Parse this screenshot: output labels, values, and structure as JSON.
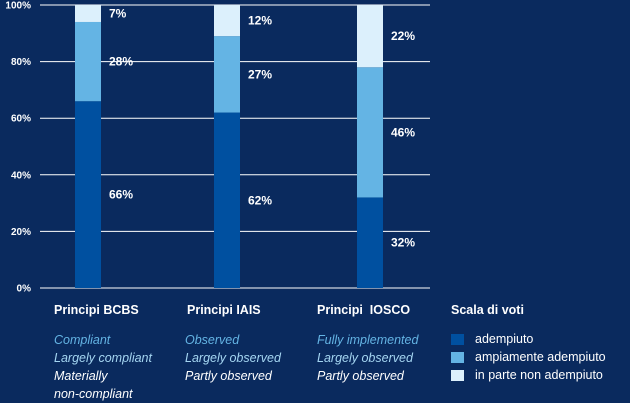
{
  "colors": {
    "background": "#0a2a5e",
    "adempiuto": "#0050a0",
    "ampiamente": "#64b4e4",
    "in_parte": "#dcf0fc",
    "grid": "#ffffff"
  },
  "chart_data": {
    "type": "bar",
    "stacked": true,
    "title": "",
    "xlabel": "",
    "ylabel": "",
    "ylim": [
      0,
      100
    ],
    "yticks": [
      "0%",
      "20%",
      "40%",
      "60%",
      "80%",
      "100%"
    ],
    "categories": [
      "Principi BCBS",
      "Principi IAIS",
      "Principi  IOSCO"
    ],
    "series": [
      {
        "name": "adempiuto",
        "values": [
          66,
          62,
          32
        ],
        "labels": [
          "66%",
          "62%",
          "32%"
        ]
      },
      {
        "name": "ampiamente adempiuto",
        "values": [
          28,
          27,
          46
        ],
        "labels": [
          "28%",
          "27%",
          "46%"
        ]
      },
      {
        "name": "in parte non adempiuto",
        "values": [
          7,
          12,
          22
        ],
        "labels": [
          "7%",
          "12%",
          "22%"
        ]
      }
    ],
    "legend_title": "Scala di voti",
    "legend_position": "right",
    "grid": true
  },
  "descriptions": [
    [
      "Compliant",
      "Largely compliant",
      "Materially",
      "non-compliant"
    ],
    [
      "Observed",
      "Largely observed",
      "Partly observed"
    ],
    [
      "Fully implemented",
      "Largely observed",
      "Partly observed"
    ]
  ]
}
